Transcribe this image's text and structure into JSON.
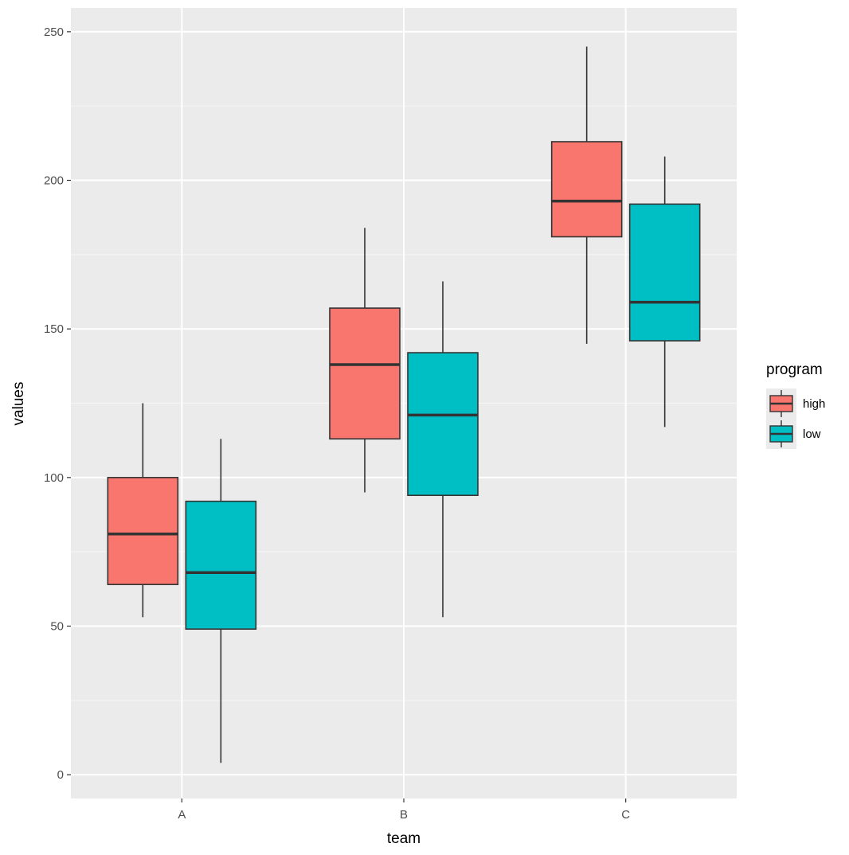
{
  "chart_data": {
    "type": "boxplot",
    "xlabel": "team",
    "ylabel": "values",
    "categories": [
      "A",
      "B",
      "C"
    ],
    "ylim": [
      -8,
      258
    ],
    "yticks": [
      0,
      50,
      100,
      150,
      200,
      250
    ],
    "grid": true,
    "legend": {
      "title": "program",
      "position": "right"
    },
    "series": [
      {
        "name": "high",
        "color": "#F8766D",
        "boxes": [
          {
            "category": "A",
            "min": 53,
            "q1": 64,
            "median": 81,
            "q3": 100,
            "max": 125
          },
          {
            "category": "B",
            "min": 95,
            "q1": 113,
            "median": 138,
            "q3": 157,
            "max": 184
          },
          {
            "category": "C",
            "min": 145,
            "q1": 181,
            "median": 193,
            "q3": 213,
            "max": 245
          }
        ]
      },
      {
        "name": "low",
        "color": "#00BFC4",
        "boxes": [
          {
            "category": "A",
            "min": 4,
            "q1": 49,
            "median": 68,
            "q3": 92,
            "max": 113
          },
          {
            "category": "B",
            "min": 53,
            "q1": 94,
            "median": 121,
            "q3": 142,
            "max": 166
          },
          {
            "category": "C",
            "min": 117,
            "q1": 146,
            "median": 159,
            "q3": 192,
            "max": 208
          }
        ]
      }
    ]
  }
}
